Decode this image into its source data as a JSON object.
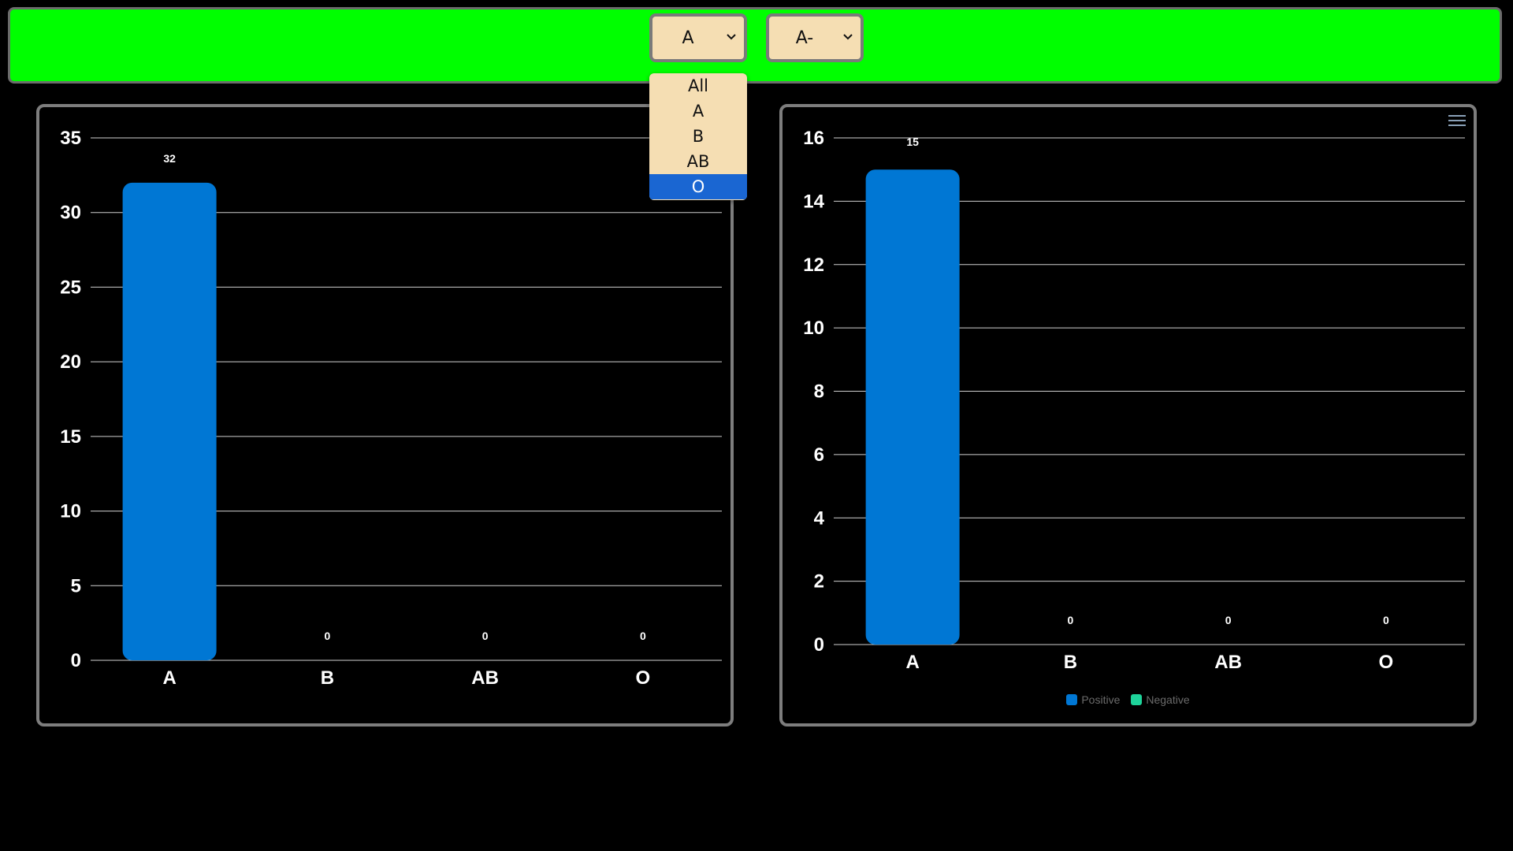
{
  "filters": {
    "blood_group": {
      "selected": "A",
      "options": [
        "All",
        "A",
        "B",
        "AB",
        "O"
      ],
      "highlighted": "O"
    },
    "blood_type": {
      "selected": "A-"
    }
  },
  "colors": {
    "topbar": "#00ff00",
    "select_bg": "#f5deb3",
    "positive": "#0077d4",
    "negative": "#1ed39a"
  },
  "icons": [
    "chevron-down-icon",
    "menu-icon"
  ],
  "chart_data": [
    {
      "type": "bar",
      "categories": [
        "A",
        "B",
        "AB",
        "O"
      ],
      "values": [
        32,
        0,
        0,
        0
      ],
      "ylim": [
        0,
        35
      ],
      "yticks": [
        0,
        5,
        10,
        15,
        20,
        25,
        30,
        35
      ],
      "grid": true
    },
    {
      "type": "bar",
      "categories": [
        "A",
        "B",
        "AB",
        "O"
      ],
      "series": [
        {
          "name": "Positive",
          "values": [
            15,
            0,
            0,
            0
          ]
        },
        {
          "name": "Negative",
          "values": [
            0,
            0,
            0,
            0
          ]
        }
      ],
      "data_labels": [
        15,
        0,
        0,
        0
      ],
      "ylim": [
        0,
        16
      ],
      "yticks": [
        0,
        2,
        4,
        6,
        8,
        10,
        12,
        14,
        16
      ],
      "grid": true,
      "legend": "bottom-center"
    }
  ]
}
